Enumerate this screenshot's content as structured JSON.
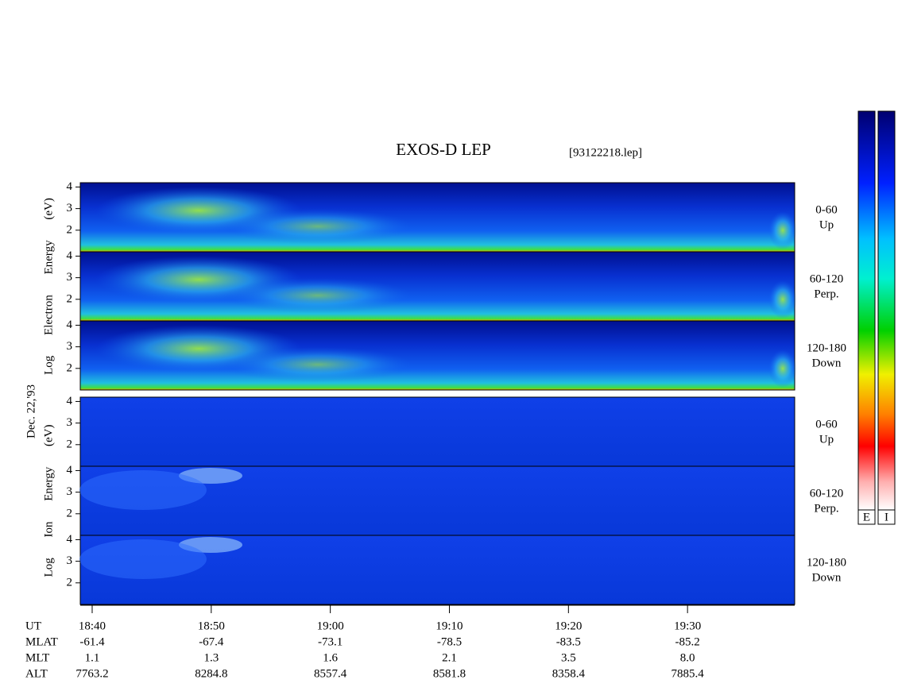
{
  "chart_data": {
    "type": "spectrogram",
    "title": "EXOS-D LEP",
    "file": "[93122218.lep]",
    "date_label": "Dec. 22,'93",
    "xlim": [
      "18:39",
      "19:39"
    ],
    "xticks": [
      "18:40",
      "18:50",
      "19:00",
      "19:10",
      "19:20",
      "19:30"
    ],
    "ylim": [
      1,
      4.2
    ],
    "yticks": [
      2,
      3,
      4
    ],
    "blocks": [
      {
        "ylabel": "Log Electron Energy (eV)",
        "panels": [
          {
            "angle": "0-60",
            "direction": "Up"
          },
          {
            "angle": "60-120",
            "direction": "Perp."
          },
          {
            "angle": "120-180",
            "direction": "Down"
          }
        ]
      },
      {
        "ylabel": "Log Ion Energy (eV)",
        "panels": [
          {
            "angle": "0-60",
            "direction": "Up"
          },
          {
            "angle": "60-120",
            "direction": "Perp."
          },
          {
            "angle": "120-180",
            "direction": "Down"
          }
        ]
      }
    ],
    "xlabel": "UT",
    "orbit": [
      {
        "label": "MLAT",
        "values": [
          "-61.4",
          "-67.4",
          "-73.1",
          "-78.5",
          "-83.5",
          "-85.2"
        ]
      },
      {
        "label": "MLT",
        "values": [
          "1.1",
          "1.3",
          "1.6",
          "2.1",
          "3.5",
          "8.0"
        ]
      },
      {
        "label": "ALT",
        "values": [
          "7763.2",
          "8284.8",
          "8557.4",
          "8581.8",
          "8358.4",
          "7885.4"
        ]
      }
    ],
    "colorbar_labels": [
      "E",
      "I"
    ]
  }
}
